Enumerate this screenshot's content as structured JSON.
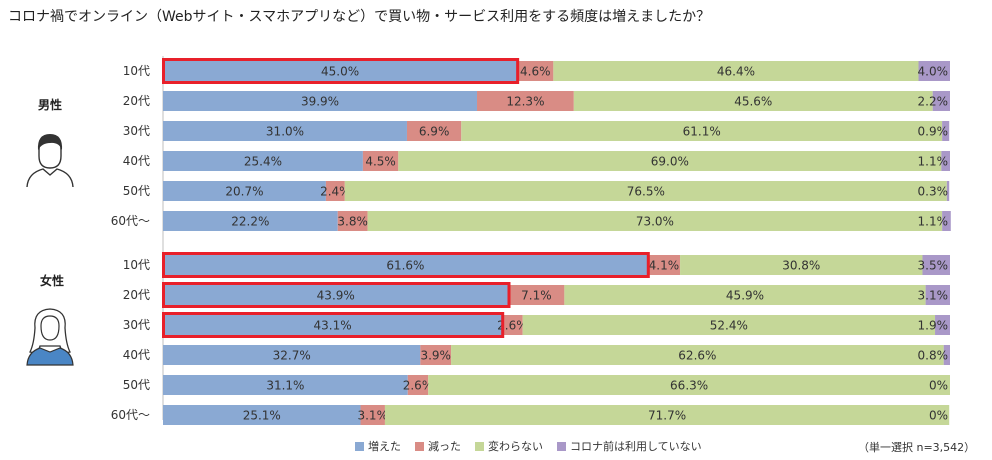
{
  "title": "コロナ禍でオンライン（Webサイト・スマホアプリなど）で買い物・サービス利用をする頻度は増えましたか？",
  "note": "（単一選択 n=3,542）",
  "colors": {
    "increased": "#8aa9d3",
    "decreased": "#d98c85",
    "unchanged": "#c5d798",
    "never": "#a998c8",
    "highlight": "#e8202a"
  },
  "chart_data": {
    "type": "bar",
    "orientation": "horizontal-stacked-100",
    "series_names": [
      "増えた",
      "減った",
      "変わらない",
      "コロナ前は利用していない"
    ],
    "groups": [
      {
        "name": "男性",
        "icon": "male-person-icon",
        "rows": [
          {
            "label": "10代",
            "values": [
              45.0,
              4.6,
              46.4,
              4.0
            ],
            "highlight": true
          },
          {
            "label": "20代",
            "values": [
              39.9,
              12.3,
              45.6,
              2.2
            ],
            "highlight": false
          },
          {
            "label": "30代",
            "values": [
              31.0,
              6.9,
              61.1,
              0.9
            ],
            "highlight": false
          },
          {
            "label": "40代",
            "values": [
              25.4,
              4.5,
              69.0,
              1.1
            ],
            "highlight": false
          },
          {
            "label": "50代",
            "values": [
              20.7,
              2.4,
              76.5,
              0.3
            ],
            "highlight": false
          },
          {
            "label": "60代〜",
            "values": [
              22.2,
              3.8,
              73.0,
              1.1
            ],
            "highlight": false
          }
        ]
      },
      {
        "name": "女性",
        "icon": "female-person-icon",
        "rows": [
          {
            "label": "10代",
            "values": [
              61.6,
              4.1,
              30.8,
              3.5
            ],
            "highlight": true
          },
          {
            "label": "20代",
            "values": [
              43.9,
              7.1,
              45.9,
              3.1
            ],
            "highlight": true
          },
          {
            "label": "30代",
            "values": [
              43.1,
              2.6,
              52.4,
              1.9
            ],
            "highlight": true
          },
          {
            "label": "40代",
            "values": [
              32.7,
              3.9,
              62.6,
              0.8
            ],
            "highlight": false
          },
          {
            "label": "50代",
            "values": [
              31.1,
              2.6,
              66.3,
              0.0
            ],
            "highlight": false
          },
          {
            "label": "60代〜",
            "values": [
              25.1,
              3.1,
              71.7,
              0.0
            ],
            "highlight": false
          }
        ]
      }
    ]
  }
}
